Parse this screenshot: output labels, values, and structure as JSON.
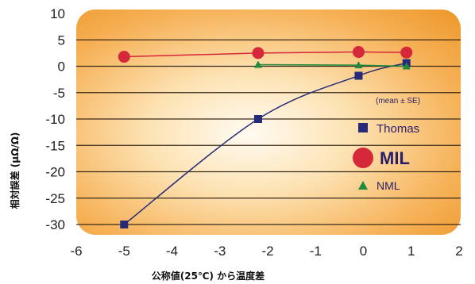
{
  "chart_data": {
    "type": "line",
    "xlabel": "公称値(25℃) から温度差",
    "ylabel": "相対誤差 (μΩ/Ω)",
    "xlim": [
      -6,
      2
    ],
    "ylim": [
      -30,
      10
    ],
    "xticks": [
      "-6",
      "-5",
      "-4",
      "-3",
      "-2",
      "-1",
      "0",
      "1",
      "2"
    ],
    "yticks": [
      "10",
      "5",
      "0",
      "-5",
      "-10",
      "-15",
      "-20",
      "-25",
      "-30"
    ],
    "grid": "horizontal",
    "annotation": "(mean ± SE)",
    "legend_placement": "right",
    "series": [
      {
        "name": "Thomas",
        "marker": "square",
        "color": "#262a78",
        "x": [
          -5,
          -2.2,
          -0.1,
          0.9
        ],
        "y": [
          -30,
          -10,
          -1.8,
          0.6
        ]
      },
      {
        "name": "MIL",
        "marker": "circle",
        "color": "#d5283a",
        "x": [
          -5,
          -2.2,
          -0.1,
          0.9
        ],
        "y": [
          1.8,
          2.5,
          2.7,
          2.6
        ]
      },
      {
        "name": "NML",
        "marker": "triangle",
        "color": "#1f8a3a",
        "x": [
          -2.2,
          -0.1,
          0.9
        ],
        "y": [
          0.3,
          0.2,
          0.0
        ]
      }
    ]
  }
}
